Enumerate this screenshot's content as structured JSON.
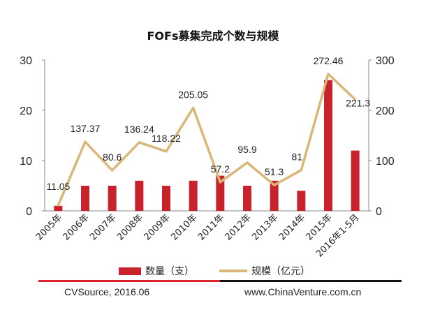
{
  "chart_data": {
    "type": "bar",
    "title": "FOFs募集完成个数与规模",
    "categories": [
      "2005年",
      "2006年",
      "2007年",
      "2008年",
      "2009年",
      "2010年",
      "2011年",
      "2012年",
      "2013年",
      "2014年",
      "2015年",
      "2016年1-5月"
    ],
    "series": [
      {
        "name": "数量（支）",
        "type": "bar",
        "axis": "left",
        "color": "#c8232c",
        "values": [
          1,
          5,
          5,
          6,
          5,
          6,
          7,
          5,
          6,
          4,
          26,
          12
        ]
      },
      {
        "name": "规模（亿元）",
        "type": "line",
        "axis": "right",
        "color": "#d9b777",
        "values": [
          11.05,
          137.37,
          80.6,
          136.24,
          118.22,
          205.05,
          57.2,
          95.9,
          51.3,
          81,
          272.46,
          221.3
        ],
        "labels": [
          "11.05",
          "137.37",
          "80.6",
          "136.24",
          "118.22",
          "205.05",
          "57.2",
          "95.9",
          "51.3",
          "81",
          "272.46",
          "221.3"
        ]
      }
    ],
    "y_left": {
      "ylim": [
        0,
        30
      ],
      "ticks": [
        "0",
        "10",
        "20",
        "30"
      ]
    },
    "y_right": {
      "ylim": [
        0,
        300
      ],
      "ticks": [
        "0",
        "100",
        "200",
        "300"
      ]
    },
    "grid": false,
    "legend_position": "bottom"
  },
  "legend": {
    "bar_label": "数量（支）",
    "line_label": "规模（亿元）"
  },
  "footer": {
    "source": "CVSource, 2016.06",
    "website": "www.ChinaVenture.com.cn"
  }
}
